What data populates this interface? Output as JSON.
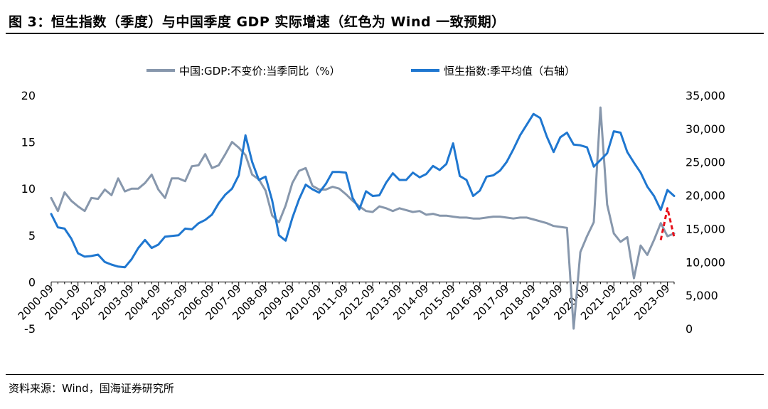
{
  "figure": {
    "title": "图 3：恒生指数（季度）与中国季度 GDP 实际增速（红色为 Wind 一致预期）",
    "source": "资料来源：Wind，国海证券研究所"
  },
  "colors": {
    "gdp": "#8797ac",
    "hsi": "#1f77d0",
    "forecast": "#e8111b",
    "axis": "#000000"
  },
  "chart_data": {
    "type": "line",
    "x": [
      "2000-09",
      "2000-12",
      "2001-03",
      "2001-06",
      "2001-09",
      "2001-12",
      "2002-03",
      "2002-06",
      "2002-09",
      "2002-12",
      "2003-03",
      "2003-06",
      "2003-09",
      "2003-12",
      "2004-03",
      "2004-06",
      "2004-09",
      "2004-12",
      "2005-03",
      "2005-06",
      "2005-09",
      "2005-12",
      "2006-03",
      "2006-06",
      "2006-09",
      "2006-12",
      "2007-03",
      "2007-06",
      "2007-09",
      "2007-12",
      "2008-03",
      "2008-06",
      "2008-09",
      "2008-12",
      "2009-03",
      "2009-06",
      "2009-09",
      "2009-12",
      "2010-03",
      "2010-06",
      "2010-09",
      "2010-12",
      "2011-03",
      "2011-06",
      "2011-09",
      "2011-12",
      "2012-03",
      "2012-06",
      "2012-09",
      "2012-12",
      "2013-03",
      "2013-06",
      "2013-09",
      "2013-12",
      "2014-03",
      "2014-06",
      "2014-09",
      "2014-12",
      "2015-03",
      "2015-06",
      "2015-09",
      "2015-12",
      "2016-03",
      "2016-06",
      "2016-09",
      "2016-12",
      "2017-03",
      "2017-06",
      "2017-09",
      "2017-12",
      "2018-03",
      "2018-06",
      "2018-09",
      "2018-12",
      "2019-03",
      "2019-06",
      "2019-09",
      "2019-12",
      "2020-03",
      "2020-06",
      "2020-09",
      "2020-12",
      "2021-03",
      "2021-06",
      "2021-09",
      "2021-12",
      "2022-03",
      "2022-06",
      "2022-09",
      "2022-12",
      "2023-03",
      "2023-06",
      "2023-09",
      "2023-12"
    ],
    "x_tick_labels": [
      "2000-09",
      "2001-09",
      "2002-09",
      "2003-09",
      "2004-09",
      "2005-09",
      "2006-09",
      "2007-09",
      "2008-09",
      "2009-09",
      "2010-09",
      "2011-09",
      "2012-09",
      "2013-09",
      "2014-09",
      "2015-09",
      "2016-09",
      "2017-09",
      "2018-09",
      "2019-09",
      "2020-09",
      "2021-09",
      "2022-09",
      "2023-09"
    ],
    "left_axis": {
      "ylim": [
        -5,
        20
      ],
      "ticks": [
        "-5",
        "0",
        "5",
        "10",
        "15",
        "20"
      ]
    },
    "right_axis": {
      "ylim": [
        0,
        35000
      ],
      "ticks": [
        "0",
        "5,000",
        "10,000",
        "15,000",
        "20,000",
        "25,000",
        "30,000",
        "35,000"
      ]
    },
    "series": [
      {
        "name": "中国:GDP:不变价:当季同比（%）",
        "axis": "left",
        "values": [
          9.0,
          7.6,
          9.6,
          8.7,
          8.1,
          7.6,
          9.0,
          8.9,
          9.9,
          9.3,
          11.1,
          9.7,
          10.0,
          10.0,
          10.6,
          11.5,
          9.9,
          9.0,
          11.1,
          11.1,
          10.8,
          12.4,
          12.5,
          13.7,
          12.2,
          12.5,
          13.7,
          15.0,
          14.4,
          13.6,
          11.5,
          11.0,
          9.8,
          7.1,
          6.4,
          8.2,
          10.6,
          11.9,
          12.2,
          10.3,
          9.9,
          9.9,
          10.2,
          10.0,
          9.4,
          8.7,
          8.1,
          7.6,
          7.5,
          8.1,
          7.9,
          7.6,
          7.9,
          7.7,
          7.5,
          7.6,
          7.2,
          7.3,
          7.1,
          7.1,
          7.0,
          6.9,
          6.9,
          6.8,
          6.8,
          6.9,
          7.0,
          7.0,
          6.9,
          6.8,
          6.9,
          6.9,
          6.7,
          6.5,
          6.3,
          6.0,
          5.9,
          5.8,
          -5.0,
          3.2,
          4.9,
          6.4,
          18.7,
          8.3,
          5.2,
          4.3,
          4.8,
          0.4,
          3.9,
          2.9,
          4.5,
          6.3,
          4.9,
          5.2
        ]
      },
      {
        "name": "恒生指数:季平均值（右轴）",
        "axis": "right",
        "values": [
          17200,
          15200,
          15000,
          13500,
          11300,
          10800,
          10900,
          11100,
          10000,
          9600,
          9300,
          9200,
          10400,
          12100,
          13300,
          12100,
          12600,
          13800,
          13900,
          14000,
          15000,
          14900,
          15800,
          16300,
          17100,
          18800,
          20100,
          21000,
          23000,
          29000,
          25000,
          22300,
          22800,
          19200,
          14000,
          13200,
          16600,
          19400,
          21600,
          20900,
          20400,
          21700,
          23500,
          23500,
          23400,
          19600,
          17900,
          20600,
          19900,
          20000,
          21900,
          23300,
          22300,
          22300,
          23400,
          22700,
          23200,
          24400,
          23800,
          24700,
          27800,
          22900,
          22300,
          19900,
          20700,
          22800,
          23000,
          23700,
          25000,
          26900,
          29000,
          30600,
          32200,
          31600,
          28800,
          26500,
          28700,
          29400,
          27600,
          27500,
          27200,
          24300,
          25300,
          26300,
          29600,
          29400,
          26500,
          24900,
          23400,
          21300,
          19900,
          17800,
          20800,
          19900
        ]
      }
    ],
    "forecast": {
      "name": "Wind 一致预期",
      "axis": "left",
      "x": [
        "2023-06",
        "2023-09",
        "2023-12"
      ],
      "values": [
        4.5,
        7.9,
        4.8
      ]
    }
  }
}
